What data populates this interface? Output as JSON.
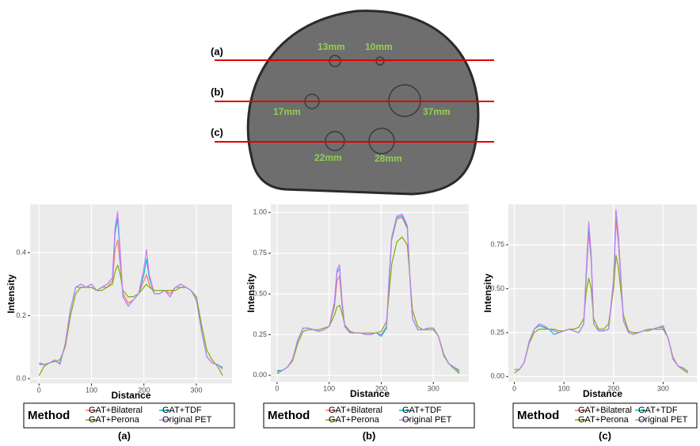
{
  "phantom": {
    "line_labels": [
      "(a)",
      "(b)",
      "(c)"
    ],
    "sizes": [
      "13mm",
      "10mm",
      "17mm",
      "37mm",
      "22mm",
      "28mm"
    ]
  },
  "panel_labels": [
    "(a)",
    "(b)",
    "(c)"
  ],
  "chart_data": [
    {
      "type": "line",
      "xlabel": "Distance",
      "ylabel": "Intensity",
      "legend_title": "Method",
      "grid": true,
      "xlim": [
        -17,
        368
      ],
      "xticks": [
        0,
        100,
        200,
        300
      ],
      "ylim": [
        -0.015,
        0.553
      ],
      "yticks": [
        {
          "value": 0,
          "label": "0.0"
        },
        0.2,
        0.4
      ],
      "x": [
        0,
        10,
        20,
        30,
        40,
        50,
        60,
        70,
        80,
        90,
        100,
        110,
        120,
        130,
        140,
        145,
        150,
        155,
        160,
        170,
        180,
        190,
        200,
        205,
        210,
        220,
        230,
        240,
        250,
        260,
        270,
        280,
        290,
        300,
        310,
        320,
        330,
        340,
        350
      ],
      "series": [
        {
          "name": "GAT+Bilateral",
          "color": "#F8766D",
          "values": [
            0.045,
            0.045,
            0.05,
            0.055,
            0.05,
            0.11,
            0.22,
            0.29,
            0.29,
            0.29,
            0.29,
            0.28,
            0.29,
            0.29,
            0.31,
            0.41,
            0.44,
            0.36,
            0.27,
            0.24,
            0.25,
            0.27,
            0.31,
            0.33,
            0.3,
            0.27,
            0.27,
            0.28,
            0.27,
            0.29,
            0.29,
            0.29,
            0.28,
            0.25,
            0.15,
            0.07,
            0.05,
            0.045,
            0.035
          ]
        },
        {
          "name": "GAT+TDF",
          "color": "#00BFC4",
          "values": [
            0.05,
            0.045,
            0.05,
            0.055,
            0.05,
            0.11,
            0.22,
            0.29,
            0.3,
            0.29,
            0.3,
            0.28,
            0.29,
            0.3,
            0.32,
            0.46,
            0.51,
            0.39,
            0.26,
            0.23,
            0.25,
            0.27,
            0.33,
            0.38,
            0.32,
            0.27,
            0.27,
            0.28,
            0.26,
            0.29,
            0.3,
            0.29,
            0.28,
            0.25,
            0.15,
            0.07,
            0.05,
            0.045,
            0.035
          ]
        },
        {
          "name": "GAT+Perona",
          "color": "#7CAE00",
          "values": [
            0.01,
            0.04,
            0.05,
            0.055,
            0.06,
            0.1,
            0.2,
            0.27,
            0.29,
            0.29,
            0.29,
            0.28,
            0.28,
            0.29,
            0.3,
            0.34,
            0.36,
            0.33,
            0.28,
            0.26,
            0.26,
            0.27,
            0.29,
            0.3,
            0.29,
            0.28,
            0.28,
            0.28,
            0.28,
            0.28,
            0.29,
            0.29,
            0.28,
            0.26,
            0.17,
            0.09,
            0.06,
            0.04,
            0.01
          ]
        },
        {
          "name": "Original PET",
          "color": "#C77CFF",
          "values": [
            0.045,
            0.045,
            0.05,
            0.06,
            0.045,
            0.11,
            0.22,
            0.29,
            0.3,
            0.29,
            0.3,
            0.28,
            0.29,
            0.3,
            0.32,
            0.48,
            0.53,
            0.4,
            0.26,
            0.23,
            0.25,
            0.27,
            0.35,
            0.41,
            0.33,
            0.27,
            0.27,
            0.28,
            0.26,
            0.29,
            0.3,
            0.29,
            0.28,
            0.25,
            0.15,
            0.07,
            0.05,
            0.045,
            0.03
          ]
        }
      ]
    },
    {
      "type": "line",
      "xlabel": "Distance",
      "ylabel": "Intensity",
      "legend_title": "Method",
      "grid": true,
      "xlim": [
        -12,
        368
      ],
      "xticks": [
        0,
        100,
        200,
        300
      ],
      "ylim": [
        -0.04,
        1.05
      ],
      "yticks": [
        {
          "value": 0,
          "label": "0.00"
        },
        0.25,
        {
          "value": 0.5,
          "label": "0.50"
        },
        0.75,
        {
          "value": 1,
          "label": "1.00"
        }
      ],
      "x": [
        0,
        10,
        20,
        30,
        40,
        50,
        60,
        70,
        80,
        90,
        100,
        110,
        115,
        120,
        125,
        130,
        140,
        150,
        160,
        170,
        180,
        190,
        200,
        210,
        215,
        220,
        230,
        240,
        250,
        255,
        260,
        270,
        280,
        290,
        300,
        310,
        320,
        330,
        340,
        350
      ],
      "series": [
        {
          "name": "GAT+Bilateral",
          "color": "#F8766D",
          "values": [
            0.03,
            0.03,
            0.05,
            0.1,
            0.22,
            0.29,
            0.29,
            0.28,
            0.27,
            0.28,
            0.3,
            0.42,
            0.58,
            0.61,
            0.42,
            0.3,
            0.26,
            0.26,
            0.26,
            0.25,
            0.25,
            0.26,
            0.25,
            0.29,
            0.57,
            0.83,
            0.96,
            0.97,
            0.9,
            0.59,
            0.35,
            0.28,
            0.28,
            0.29,
            0.29,
            0.24,
            0.12,
            0.07,
            0.05,
            0.03
          ]
        },
        {
          "name": "GAT+TDF",
          "color": "#00BFC4",
          "values": [
            0.03,
            0.03,
            0.05,
            0.1,
            0.22,
            0.29,
            0.29,
            0.28,
            0.27,
            0.28,
            0.3,
            0.44,
            0.63,
            0.66,
            0.44,
            0.3,
            0.26,
            0.26,
            0.26,
            0.25,
            0.25,
            0.26,
            0.24,
            0.29,
            0.58,
            0.84,
            0.97,
            0.98,
            0.91,
            0.6,
            0.35,
            0.28,
            0.28,
            0.29,
            0.29,
            0.24,
            0.12,
            0.07,
            0.05,
            0.03
          ]
        },
        {
          "name": "GAT+Perona",
          "color": "#7CAE00",
          "values": [
            0.01,
            0.03,
            0.05,
            0.09,
            0.2,
            0.27,
            0.28,
            0.28,
            0.28,
            0.29,
            0.3,
            0.37,
            0.42,
            0.43,
            0.38,
            0.31,
            0.27,
            0.26,
            0.26,
            0.26,
            0.26,
            0.26,
            0.27,
            0.33,
            0.5,
            0.68,
            0.82,
            0.85,
            0.8,
            0.6,
            0.4,
            0.3,
            0.28,
            0.28,
            0.28,
            0.24,
            0.13,
            0.07,
            0.04,
            0.01
          ]
        },
        {
          "name": "Original PET",
          "color": "#C77CFF",
          "values": [
            0.02,
            0.03,
            0.05,
            0.1,
            0.22,
            0.29,
            0.29,
            0.28,
            0.27,
            0.28,
            0.3,
            0.45,
            0.65,
            0.68,
            0.45,
            0.3,
            0.26,
            0.26,
            0.26,
            0.25,
            0.25,
            0.26,
            0.25,
            0.3,
            0.6,
            0.85,
            0.98,
            0.99,
            0.92,
            0.6,
            0.35,
            0.28,
            0.28,
            0.29,
            0.29,
            0.24,
            0.12,
            0.07,
            0.05,
            0.02
          ]
        }
      ]
    },
    {
      "type": "line",
      "xlabel": "Distance",
      "ylabel": "Intensity",
      "legend_title": "Method",
      "grid": true,
      "xlim": [
        -12,
        368
      ],
      "xticks": [
        0,
        100,
        200,
        300
      ],
      "ylim": [
        -0.03,
        0.98
      ],
      "yticks": [
        {
          "value": 0,
          "label": "0.00"
        },
        0.25,
        {
          "value": 0.5,
          "label": "0.50"
        },
        0.75
      ],
      "x": [
        0,
        10,
        20,
        30,
        40,
        50,
        60,
        70,
        80,
        90,
        100,
        110,
        120,
        130,
        140,
        145,
        150,
        155,
        160,
        170,
        180,
        190,
        200,
        205,
        210,
        220,
        230,
        240,
        250,
        260,
        270,
        280,
        290,
        300,
        310,
        320,
        330,
        340,
        350
      ],
      "series": [
        {
          "name": "GAT+Bilateral",
          "color": "#F8766D",
          "values": [
            0.04,
            0.04,
            0.08,
            0.2,
            0.27,
            0.29,
            0.28,
            0.27,
            0.26,
            0.25,
            0.26,
            0.27,
            0.26,
            0.25,
            0.3,
            0.56,
            0.82,
            0.66,
            0.3,
            0.26,
            0.26,
            0.27,
            0.52,
            0.89,
            0.76,
            0.32,
            0.25,
            0.24,
            0.25,
            0.26,
            0.27,
            0.27,
            0.28,
            0.28,
            0.22,
            0.1,
            0.06,
            0.05,
            0.03
          ]
        },
        {
          "name": "GAT+TDF",
          "color": "#00BFC4",
          "values": [
            0.04,
            0.04,
            0.08,
            0.2,
            0.27,
            0.29,
            0.28,
            0.27,
            0.24,
            0.25,
            0.26,
            0.27,
            0.26,
            0.25,
            0.3,
            0.58,
            0.86,
            0.68,
            0.3,
            0.26,
            0.26,
            0.27,
            0.54,
            0.94,
            0.79,
            0.32,
            0.25,
            0.24,
            0.25,
            0.26,
            0.27,
            0.27,
            0.28,
            0.28,
            0.22,
            0.1,
            0.06,
            0.05,
            0.03
          ]
        },
        {
          "name": "GAT+Perona",
          "color": "#7CAE00",
          "values": [
            0.02,
            0.04,
            0.08,
            0.19,
            0.25,
            0.27,
            0.27,
            0.27,
            0.27,
            0.26,
            0.26,
            0.27,
            0.27,
            0.28,
            0.33,
            0.48,
            0.56,
            0.5,
            0.33,
            0.27,
            0.27,
            0.3,
            0.5,
            0.69,
            0.62,
            0.35,
            0.26,
            0.25,
            0.25,
            0.26,
            0.26,
            0.27,
            0.27,
            0.27,
            0.22,
            0.11,
            0.06,
            0.04,
            0.02
          ]
        },
        {
          "name": "Original PET",
          "color": "#C77CFF",
          "values": [
            0.04,
            0.04,
            0.08,
            0.2,
            0.27,
            0.3,
            0.29,
            0.27,
            0.26,
            0.25,
            0.26,
            0.27,
            0.26,
            0.25,
            0.3,
            0.6,
            0.88,
            0.7,
            0.3,
            0.26,
            0.26,
            0.27,
            0.55,
            0.95,
            0.8,
            0.32,
            0.25,
            0.24,
            0.25,
            0.26,
            0.27,
            0.27,
            0.28,
            0.29,
            0.22,
            0.1,
            0.06,
            0.05,
            0.03
          ]
        }
      ]
    }
  ]
}
